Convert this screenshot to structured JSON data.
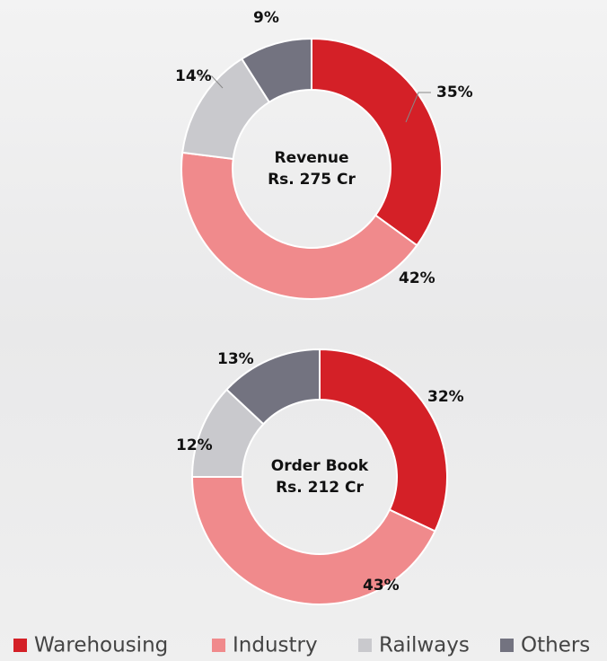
{
  "chart_data": [
    {
      "type": "donut",
      "title": "Revenue",
      "subtitle": "Rs. 275 Cr",
      "categories": [
        "Warehousing",
        "Industry",
        "Railways",
        "Others"
      ],
      "values": [
        35,
        42,
        14,
        9
      ],
      "value_labels": [
        "35%",
        "42%",
        "14%",
        "9%"
      ],
      "colors": [
        "#d42027",
        "#f08a8c",
        "#c9c9cd",
        "#737380"
      ]
    },
    {
      "type": "donut",
      "title": "Order Book",
      "subtitle": "Rs. 212 Cr",
      "categories": [
        "Warehousing",
        "Industry",
        "Railways",
        "Others"
      ],
      "values": [
        32,
        43,
        12,
        13
      ],
      "value_labels": [
        "32%",
        "43%",
        "12%",
        "13%"
      ],
      "colors": [
        "#d42027",
        "#f08a8c",
        "#c9c9cd",
        "#737380"
      ],
      "legend": "bottom"
    }
  ]
}
